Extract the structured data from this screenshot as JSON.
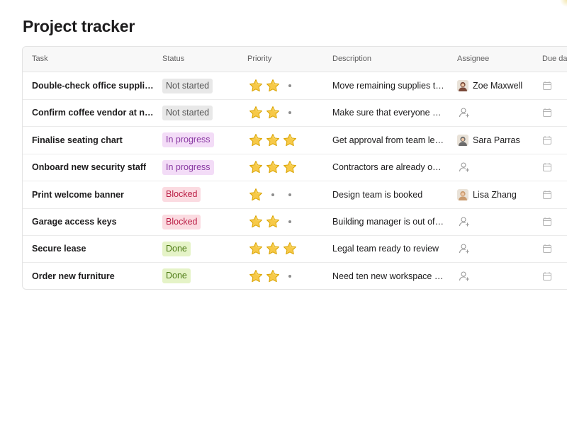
{
  "page": {
    "title": "Project tracker"
  },
  "table": {
    "columns": [
      "Task",
      "Status",
      "Priority",
      "Description",
      "Assignee",
      "Due dat"
    ],
    "rows": [
      {
        "task": "Double-check office supplies",
        "status": "Not started",
        "status_kind": "not-started",
        "priority": 2,
        "description": "Move remaining supplies to the new office",
        "assignee": "Zoe Maxwell",
        "avatar_color": "#7a4a3a"
      },
      {
        "task": "Confirm coffee vendor at new location",
        "status": "Not started",
        "status_kind": "not-started",
        "priority": 2,
        "description": "Make sure that everyone has coffee",
        "assignee": "",
        "avatar_color": ""
      },
      {
        "task": "Finalise seating chart",
        "status": "In progress",
        "status_kind": "in-progress",
        "priority": 3,
        "description": "Get approval from team leads",
        "assignee": "Sara Parras",
        "avatar_color": "#6b6b6b"
      },
      {
        "task": "Onboard new security staff",
        "status": "In progress",
        "status_kind": "in-progress",
        "priority": 3,
        "description": "Contractors are already on-site",
        "assignee": "",
        "avatar_color": ""
      },
      {
        "task": "Print welcome banner",
        "status": "Blocked",
        "status_kind": "blocked",
        "priority": 1,
        "description": "Design team is booked",
        "assignee": "Lisa Zhang",
        "avatar_color": "#c99a6e"
      },
      {
        "task": "Garage access keys",
        "status": "Blocked",
        "status_kind": "blocked",
        "priority": 2,
        "description": "Building manager is out of office",
        "assignee": "",
        "avatar_color": ""
      },
      {
        "task": "Secure lease",
        "status": "Done",
        "status_kind": "done",
        "priority": 3,
        "description": "Legal team ready to review",
        "assignee": "",
        "avatar_color": ""
      },
      {
        "task": "Order new furniture",
        "status": "Done",
        "status_kind": "done",
        "priority": 2,
        "description": "Need ten new workspace setups",
        "assignee": "",
        "avatar_color": ""
      }
    ]
  },
  "icons": {
    "star": "star-icon",
    "unassigned": "add-person-icon",
    "due": "calendar-icon"
  },
  "colors": {
    "star": "#f5c518",
    "blocked": "#bb1f46",
    "in_progress": "#8a3aa3",
    "done": "#4b7a12"
  }
}
